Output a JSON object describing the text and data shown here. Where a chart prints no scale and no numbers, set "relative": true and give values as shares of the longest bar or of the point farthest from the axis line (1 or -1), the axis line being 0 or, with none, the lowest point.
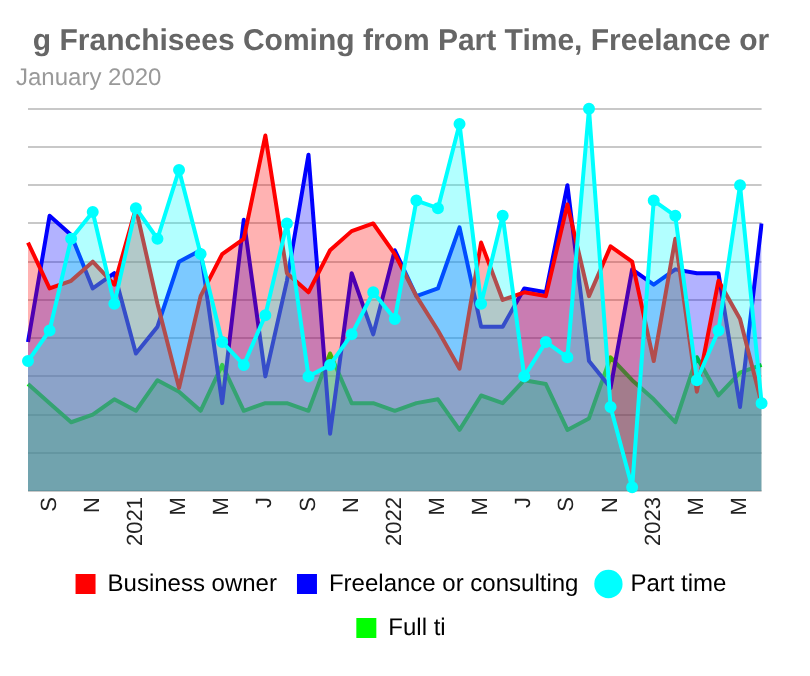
{
  "chart_data": {
    "type": "area",
    "title": "g Franchisees Coming from Part Time, Freelance or",
    "subtitle": "January 2020",
    "relative": true,
    "grid": "y",
    "legend": "bottom",
    "categories": [
      null,
      "S",
      null,
      "N",
      null,
      "2021",
      null,
      "M",
      null,
      "M",
      null,
      "J",
      null,
      "S",
      null,
      "N",
      null,
      "2022",
      null,
      "M",
      null,
      "M",
      null,
      "J",
      null,
      "S",
      null,
      "N",
      null,
      "2023",
      null,
      "M",
      null,
      "M",
      null
    ],
    "series": [
      {
        "name": "Business owner",
        "color": "#ff0000",
        "marker": "none",
        "values": [
          0.65,
          0.53,
          0.55,
          0.6,
          0.54,
          0.74,
          0.49,
          0.27,
          0.51,
          0.62,
          0.66,
          0.93,
          0.57,
          0.52,
          0.63,
          0.68,
          0.7,
          0.62,
          0.51,
          0.42,
          0.32,
          0.65,
          0.5,
          0.52,
          0.51,
          0.75,
          0.51,
          0.64,
          0.6,
          0.34,
          0.66,
          0.26,
          0.55,
          0.45,
          0.23
        ]
      },
      {
        "name": "Freelance or consulting",
        "color": "#0000ff",
        "marker": "none",
        "values": [
          0.39,
          0.72,
          0.67,
          0.53,
          0.57,
          0.36,
          0.43,
          0.6,
          0.63,
          0.23,
          0.71,
          0.3,
          0.55,
          0.88,
          0.15,
          0.57,
          0.41,
          0.63,
          0.51,
          0.53,
          0.69,
          0.43,
          0.43,
          0.53,
          0.52,
          0.8,
          0.34,
          0.27,
          0.58,
          0.54,
          0.58,
          0.57,
          0.57,
          0.22,
          0.7
        ]
      },
      {
        "name": "Part time",
        "color": "#00ffff",
        "marker": "circle",
        "values": [
          0.34,
          0.42,
          0.66,
          0.73,
          0.49,
          0.74,
          0.66,
          0.84,
          0.62,
          0.39,
          0.33,
          0.46,
          0.7,
          0.3,
          0.33,
          0.41,
          0.52,
          0.45,
          0.76,
          0.74,
          0.96,
          0.49,
          0.72,
          0.3,
          0.39,
          0.35,
          1,
          0.22,
          0.01,
          0.76,
          0.72,
          0.29,
          0.42,
          0.8,
          0.23
        ]
      },
      {
        "name": "Full ti",
        "color": "#00ff00",
        "marker": "none",
        "values": [
          0.28,
          0.23,
          0.18,
          0.2,
          0.24,
          0.21,
          0.29,
          0.26,
          0.21,
          0.33,
          0.21,
          0.23,
          0.23,
          0.21,
          0.36,
          0.23,
          0.23,
          0.21,
          0.23,
          0.24,
          0.16,
          0.25,
          0.23,
          0.29,
          0.28,
          0.16,
          0.19,
          0.35,
          0.29,
          0.24,
          0.18,
          0.35,
          0.25,
          0.31,
          0.33
        ]
      }
    ]
  }
}
